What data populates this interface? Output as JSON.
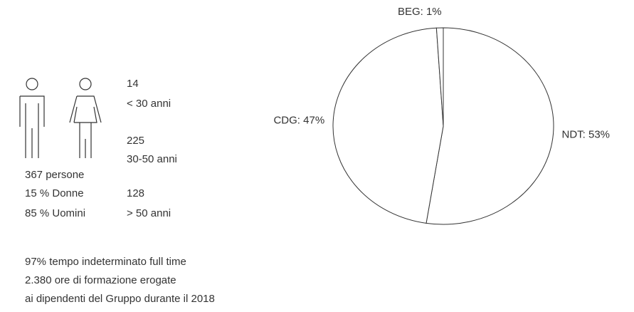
{
  "chart_data": {
    "type": "pie",
    "categories": [
      "NDT",
      "CDG",
      "BEG"
    ],
    "values": [
      53,
      47,
      1
    ],
    "value_labels": [
      "NDT: 53%",
      "CDG: 47%",
      "BEG: 1%"
    ],
    "color": "#ffffff"
  },
  "age_groups": [
    {
      "count": "14",
      "label": "< 30 anni"
    },
    {
      "count": "225",
      "label": "30-50 anni"
    },
    {
      "count": "128",
      "label": "> 50 anni"
    }
  ],
  "people": [
    "367 persone",
    "15 % Donne",
    "85 % Uomini"
  ],
  "notes": [
    "97% tempo indeterminato full time",
    "2.380 ore di formazione erogate",
    "ai dipendenti del Gruppo durante il 2018"
  ]
}
